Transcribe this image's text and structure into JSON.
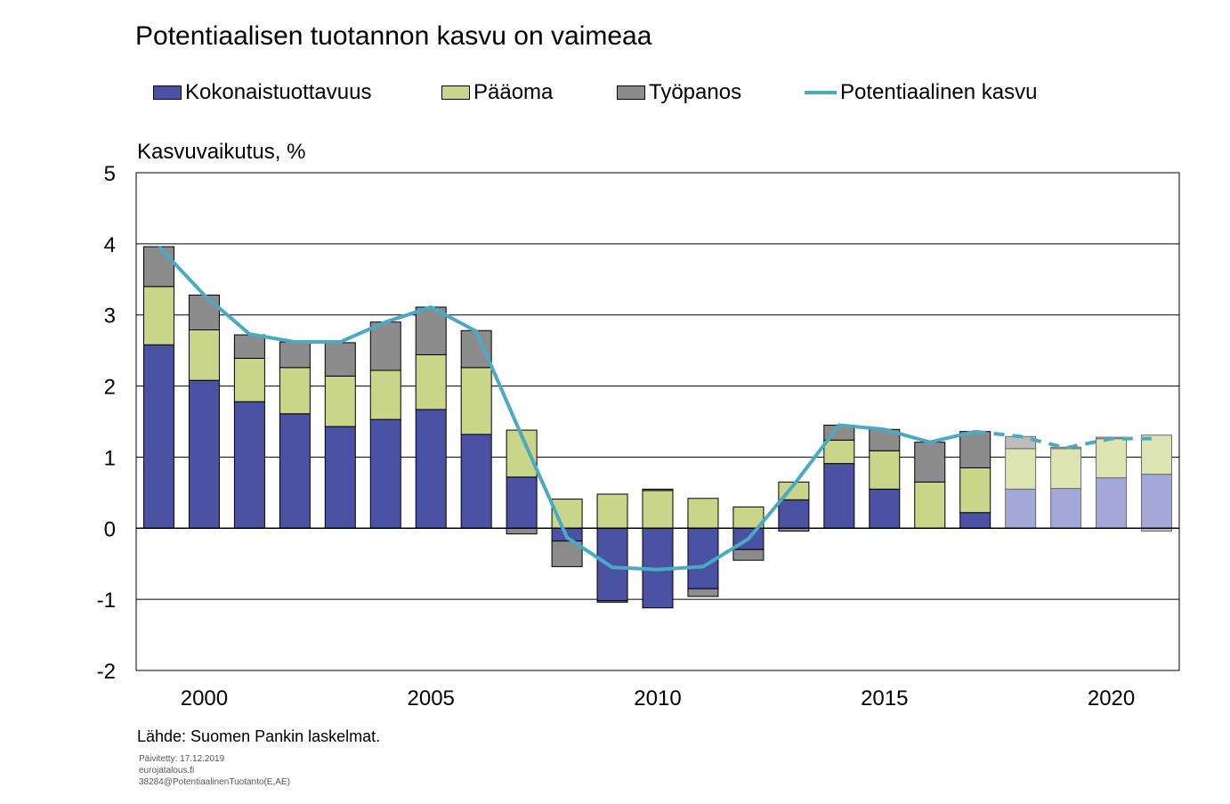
{
  "title": "Potentiaalisen tuotannon kasvu on vaimeaa",
  "legend": {
    "kok": "Kokonaistuottavuus",
    "paa": "Pääoma",
    "tyo": "Työpanos",
    "pot": "Potentiaalinen kasvu"
  },
  "ylabel": "Kasvuvaikutus, %",
  "source": "Lähde: Suomen Pankin laskelmat.",
  "meta": {
    "updated": "Päivitetty: 17.12.2019",
    "site": "eurojatalous.fi",
    "code": "38284@PotentiaalinenTuotanto(E,AE)"
  },
  "colors": {
    "kok": "#4b52a3",
    "paa": "#c9d68a",
    "tyo": "#8c8c8c",
    "kok_forecast": "#a3a8d8",
    "paa_forecast": "#dce4b2",
    "tyo_forecast": "#bdbdbd",
    "line": "#4aa9c3"
  },
  "chart_data": {
    "type": "bar",
    "stacked": true,
    "x": [
      1999,
      2000,
      2001,
      2002,
      2003,
      2004,
      2005,
      2006,
      2007,
      2008,
      2009,
      2010,
      2011,
      2012,
      2013,
      2014,
      2015,
      2016,
      2017,
      2018,
      2019,
      2020,
      2021
    ],
    "forecast_from": 2018,
    "series": [
      {
        "name": "Kokonaistuottavuus",
        "values": [
          2.58,
          2.08,
          1.78,
          1.61,
          1.43,
          1.53,
          1.67,
          1.32,
          0.72,
          -0.18,
          -1.02,
          -1.12,
          -0.85,
          -0.3,
          0.4,
          0.91,
          0.55,
          0.0,
          0.22,
          0.55,
          0.56,
          0.71,
          0.76
        ]
      },
      {
        "name": "Pääoma",
        "values": [
          0.82,
          0.71,
          0.61,
          0.65,
          0.71,
          0.69,
          0.77,
          0.94,
          0.66,
          0.41,
          0.48,
          0.53,
          0.42,
          0.3,
          0.25,
          0.33,
          0.54,
          0.65,
          0.63,
          0.57,
          0.56,
          0.55,
          0.55
        ]
      },
      {
        "name": "Työpanos",
        "values": [
          0.56,
          0.49,
          0.33,
          0.36,
          0.47,
          0.68,
          0.67,
          0.52,
          -0.08,
          -0.36,
          -0.02,
          0.02,
          -0.11,
          -0.15,
          -0.04,
          0.21,
          0.3,
          0.56,
          0.51,
          0.17,
          0.02,
          0.02,
          -0.04
        ]
      },
      {
        "name": "Potentiaalinen kasvu",
        "type": "line",
        "values": [
          3.96,
          3.28,
          2.73,
          2.62,
          2.62,
          2.9,
          3.11,
          2.77,
          1.3,
          -0.13,
          -0.55,
          -0.58,
          -0.54,
          -0.15,
          0.61,
          1.45,
          1.39,
          1.21,
          1.36,
          1.29,
          1.13,
          1.26,
          1.26
        ]
      }
    ],
    "xtick_labels": [
      "2000",
      "2005",
      "2010",
      "2015",
      "2020"
    ],
    "ylim": [
      -2,
      5
    ],
    "yticks": [
      -2,
      -1,
      0,
      1,
      2,
      3,
      4,
      5
    ],
    "grid": true,
    "legend_position": "top"
  }
}
